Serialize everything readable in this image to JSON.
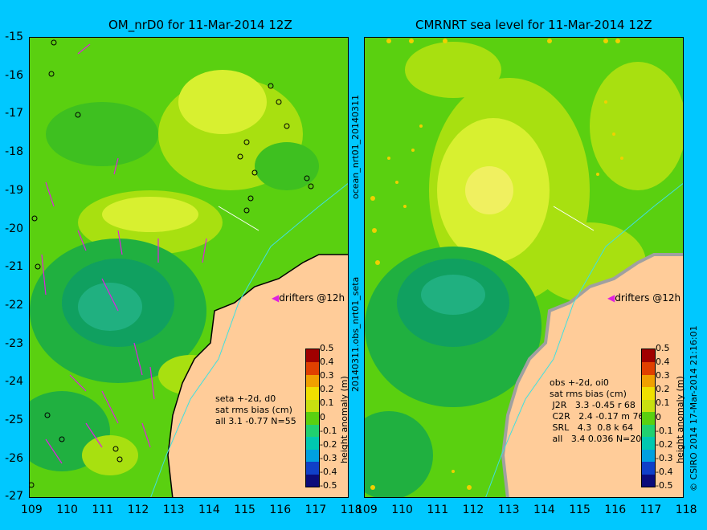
{
  "left": {
    "title": "OM_nrD0 for 11-Mar-2014 12Z",
    "drifters_label": "drifters @12h",
    "stats": [
      "seta +-2d, d0",
      "sat rms bias (cm)",
      "all 3.1 -0.77 N=55"
    ]
  },
  "right": {
    "title": "CMRNRT sea level  for 11-Mar-2014 12Z",
    "drifters_label": "drifters @12h",
    "stats": [
      "obs +-2d, oi0",
      "sat rms bias (cm)",
      " J2R   3.3 -0.45 r 68",
      " C2R   2.4 -0.17 m 76",
      " SRL   4.3  0.8 k 64",
      " all   3.4 0.036 N=208"
    ]
  },
  "xticks": [
    "109",
    "110",
    "111",
    "112",
    "113",
    "114",
    "115",
    "116",
    "117",
    "118"
  ],
  "yticks": [
    "-15",
    "-16",
    "-17",
    "-18",
    "-19",
    "-20",
    "-21",
    "-22",
    "-23",
    "-24",
    "-25",
    "-26",
    "-27"
  ],
  "colorbar": {
    "label": "height anomaly (m)",
    "ticks": [
      "0.5",
      "0.4",
      "0.3",
      "0.2",
      "0.1",
      "0",
      "-0.1",
      "-0.2",
      "-0.3",
      "-0.4",
      "-0.5"
    ],
    "colors": [
      "#0b0b7a",
      "#1040c8",
      "#00a0e0",
      "#00c8b0",
      "#20d070",
      "#5ad010",
      "#c8e010",
      "#f0e000",
      "#f0a000",
      "#e04000",
      "#a00000"
    ]
  },
  "side_label_top": "ocean_nrt01_20140311",
  "side_label_bottom": "20140311.obs_nrt01_seta",
  "footer_right": "© CSIRO 2014  17-Mar-2014 21:16:01"
}
